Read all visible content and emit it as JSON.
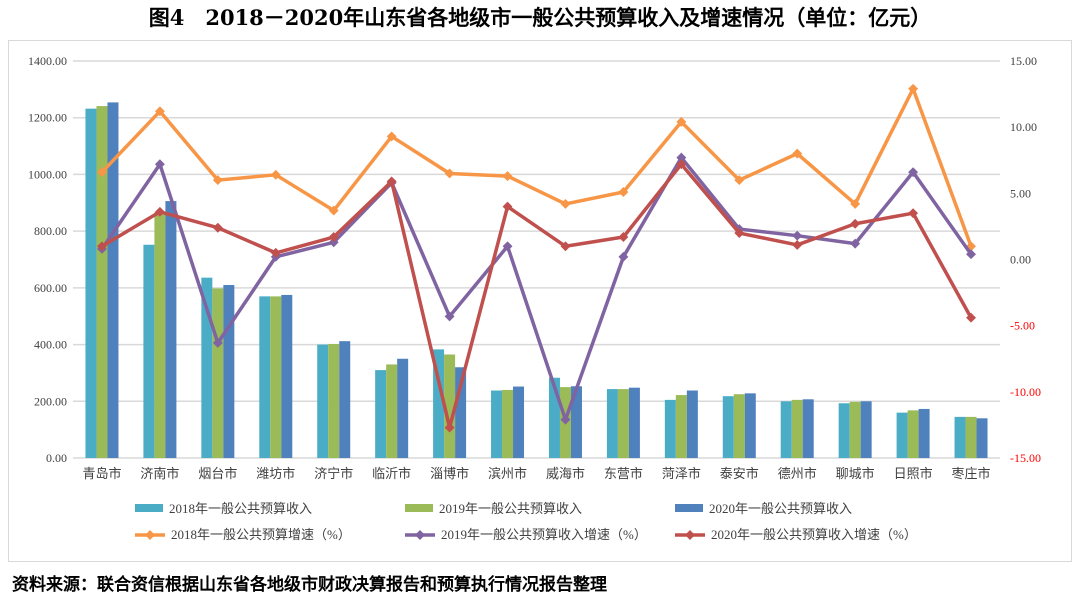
{
  "title": "图4　2018－2020年山东省各地级市一般公共预算收入及增速情况（单位：亿元）",
  "source": "资料来源：联合资信根据山东省各地级市财政决算报告和预算执行情况报告整理",
  "chart_data": {
    "type": "bar+line",
    "categories": [
      "青岛市",
      "济南市",
      "烟台市",
      "潍坊市",
      "济宁市",
      "临沂市",
      "淄博市",
      "滨州市",
      "威海市",
      "东营市",
      "菏泽市",
      "泰安市",
      "德州市",
      "聊城市",
      "日照市",
      "枣庄市"
    ],
    "y_left": {
      "range": [
        0,
        1400
      ],
      "ticks": [
        "0.00",
        "200.00",
        "400.00",
        "600.00",
        "800.00",
        "1000.00",
        "1200.00",
        "1400.00"
      ]
    },
    "y_right": {
      "range": [
        -15,
        15
      ],
      "ticks": [
        "-15.00",
        "-10.00",
        "-5.00",
        "0.00",
        "5.00",
        "10.00",
        "15.00"
      ],
      "negative_color": "#FF0000"
    },
    "grid": true,
    "legend_position": "bottom",
    "bar_series": [
      {
        "name": "2018年一般公共预算收入",
        "color": "#4BACC6",
        "values": [
          1232,
          752,
          636,
          570,
          400,
          310,
          383,
          238,
          283,
          243,
          205,
          218,
          200,
          193,
          160,
          145
        ]
      },
      {
        "name": "2019年一般公共预算收入",
        "color": "#9BBB59",
        "values": [
          1241,
          868,
          598,
          570,
          402,
          330,
          365,
          240,
          250,
          243,
          222,
          225,
          205,
          198,
          168,
          145
        ]
      },
      {
        "name": "2020年一般公共预算收入",
        "color": "#4F81BD",
        "values": [
          1254,
          906,
          610,
          575,
          412,
          350,
          320,
          252,
          253,
          248,
          238,
          228,
          207,
          200,
          173,
          140
        ]
      }
    ],
    "line_series": [
      {
        "name": "2018年一般公共预算增速（%）",
        "color": "#F79646",
        "values": [
          6.6,
          11.2,
          6.0,
          6.4,
          3.7,
          9.3,
          6.5,
          6.3,
          4.2,
          5.1,
          10.4,
          6.0,
          8.0,
          4.2,
          12.9,
          1.0
        ]
      },
      {
        "name": "2019年一般公共预算收入增速（%）",
        "color": "#8064A2",
        "values": [
          0.8,
          7.2,
          -6.3,
          0.2,
          1.3,
          5.8,
          -4.3,
          1.0,
          -12.1,
          0.2,
          7.7,
          2.3,
          1.8,
          1.2,
          6.6,
          0.4
        ]
      },
      {
        "name": "2020年一般公共预算收入增速（%）",
        "color": "#C0504D",
        "values": [
          1.0,
          3.6,
          2.4,
          0.5,
          1.7,
          5.9,
          -12.7,
          4.0,
          1.0,
          1.7,
          7.2,
          2.0,
          1.1,
          2.7,
          3.5,
          -4.4
        ]
      }
    ]
  }
}
